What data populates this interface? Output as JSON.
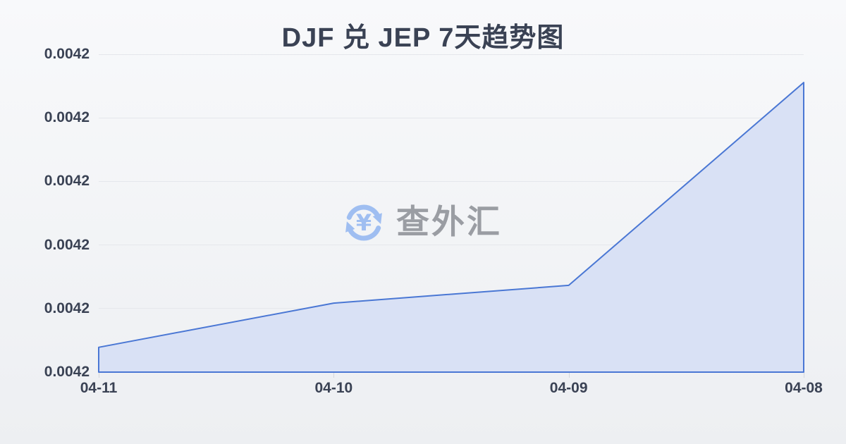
{
  "title": "DJF 兑 JEP 7天趋势图",
  "watermark": {
    "icon": "currency-exchange-icon",
    "currency_symbol": "¥",
    "text": "查外汇"
  },
  "colors": {
    "line": "#4a77d4",
    "fill": "#d9e1f5",
    "grid": "#e5e7ec",
    "tick": "#d4d7dc",
    "axis_label": "#3a4254",
    "title": "#3a4254",
    "watermark_icon": "#9fbef1",
    "watermark_text": "#9a9da3",
    "bg_top": "#f8f9fb",
    "bg_bottom": "#edeff2"
  },
  "chart_data": {
    "type": "area",
    "title": "DJF 兑 JEP 7天趋势图",
    "categories": [
      "04-11",
      "04-10",
      "04-09",
      "04-08"
    ],
    "values": [
      0.0042,
      0.0042,
      0.0042,
      0.0042
    ],
    "values_norm": [
      0.078,
      0.217,
      0.273,
      0.911
    ],
    "y_tick_labels": [
      "0.0042",
      "0.0042",
      "0.0042",
      "0.0042",
      "0.0042",
      "0.0042"
    ],
    "xlabel": "",
    "ylabel": "",
    "grid": true,
    "legend_position": "none",
    "note": "All y-axis ticks display 0.0042 (rounded); values_norm are relative heights of each point within the plot area, 0 = bottom gridline, 1 = top gridline. X axis runs from 04-11 on the left to 04-08 on the right."
  }
}
